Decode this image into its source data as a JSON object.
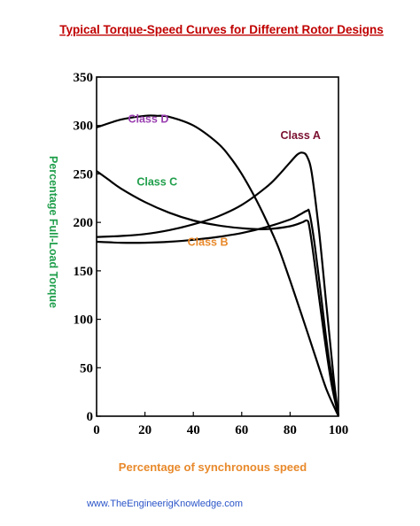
{
  "header": {
    "title": "Typical Torque-Speed Curves for Different Rotor Designs"
  },
  "footer": {
    "website": "www.TheEngineerigKnowledge.com"
  },
  "chart_data": {
    "type": "line",
    "title": "Typical Torque-Speed Curves for Different Rotor Designs",
    "xlabel": "Percentage of synchronous speed",
    "ylabel": "Percentage Full-Load Torque",
    "xlim": [
      0,
      100
    ],
    "ylim": [
      0,
      350
    ],
    "xticks": [
      0,
      20,
      40,
      60,
      80,
      100
    ],
    "yticks": [
      0,
      50,
      100,
      150,
      200,
      250,
      300,
      350
    ],
    "grid": false,
    "series": [
      {
        "name": "Class A",
        "color": "#7a1030",
        "x": [
          0,
          10,
          20,
          30,
          40,
          50,
          60,
          70,
          75,
          80,
          83,
          85,
          87,
          89,
          92,
          95,
          98,
          100
        ],
        "y": [
          185,
          186,
          188,
          192,
          198,
          206,
          218,
          236,
          248,
          262,
          270,
          272,
          268,
          250,
          190,
          115,
          40,
          0
        ]
      },
      {
        "name": "Class B",
        "color": "#e8892b",
        "x": [
          0,
          10,
          20,
          30,
          40,
          50,
          60,
          70,
          80,
          84,
          87,
          88,
          90,
          93,
          96,
          100
        ],
        "y": [
          180,
          179,
          179,
          180,
          182,
          185,
          189,
          195,
          203,
          208,
          212,
          210,
          180,
          120,
          60,
          0
        ]
      },
      {
        "name": "Class C",
        "color": "#1e9e4a",
        "x": [
          0,
          5,
          10,
          20,
          30,
          40,
          50,
          60,
          70,
          80,
          85,
          87,
          88,
          90,
          94,
          97,
          100
        ],
        "y": [
          253,
          244,
          235,
          221,
          210,
          202,
          197,
          194,
          193,
          196,
          200,
          202,
          195,
          160,
          85,
          35,
          0
        ]
      },
      {
        "name": "Class D",
        "color": "#9a3fb0",
        "x": [
          0,
          10,
          20,
          25,
          30,
          40,
          50,
          55,
          60,
          65,
          70,
          75,
          80,
          85,
          90,
          95,
          100
        ],
        "y": [
          298,
          306,
          310,
          310,
          309,
          300,
          282,
          268,
          250,
          228,
          203,
          175,
          140,
          103,
          65,
          28,
          0
        ]
      }
    ]
  }
}
